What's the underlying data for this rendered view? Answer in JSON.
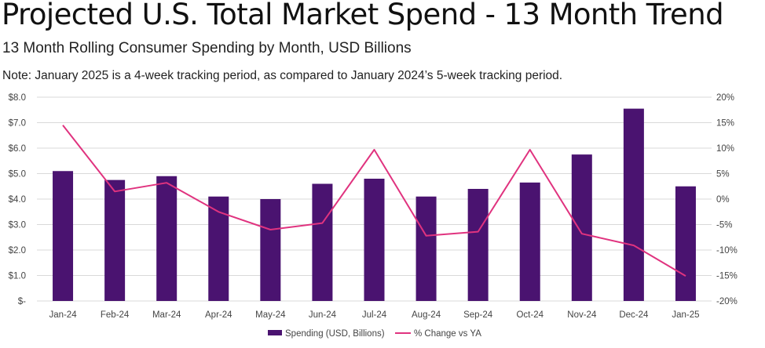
{
  "header": {
    "title": "Projected U.S. Total Market Spend - 13 Month Trend",
    "subtitle": "13 Month Rolling Consumer Spending by Month, USD Billions",
    "note": "Note: January 2025 is a 4-week tracking period, as compared to January 2024’s 5-week tracking period."
  },
  "chart_data": {
    "type": "bar",
    "title": "Projected U.S. Total Market Spend - 13 Month Trend",
    "subtitle": "13 Month Rolling Consumer Spending by Month, USD Billions",
    "categories": [
      "Jan-24",
      "Feb-24",
      "Mar-24",
      "Apr-24",
      "May-24",
      "Jun-24",
      "Jul-24",
      "Aug-24",
      "Sep-24",
      "Oct-24",
      "Nov-24",
      "Dec-24",
      "Jan-25"
    ],
    "series": [
      {
        "name": "Spending (USD, Billions)",
        "type": "bar",
        "axis": "left",
        "color": "#4a1370",
        "values": [
          5.1,
          4.75,
          4.9,
          4.1,
          4.0,
          4.6,
          4.8,
          4.1,
          4.4,
          4.65,
          5.75,
          7.55,
          4.5
        ]
      },
      {
        "name": "% Change vs YA",
        "type": "line",
        "axis": "right",
        "color": "#e0337f",
        "values": [
          14.5,
          1.5,
          3.2,
          -2.5,
          -6.0,
          -4.7,
          9.7,
          -7.2,
          -6.4,
          9.7,
          -6.8,
          -9.1,
          -15.1
        ]
      }
    ],
    "y_left": {
      "min": 0,
      "max": 8,
      "ticks": [
        0,
        1,
        2,
        3,
        4,
        5,
        6,
        7,
        8
      ],
      "tick_labels": [
        "$-",
        "$1.0",
        "$2.0",
        "$3.0",
        "$4.0",
        "$5.0",
        "$6.0",
        "$7.0",
        "$8.0"
      ]
    },
    "y_right": {
      "min": -20,
      "max": 20,
      "ticks": [
        -20,
        -15,
        -10,
        -5,
        0,
        5,
        10,
        15,
        20
      ],
      "tick_labels": [
        "-20%",
        "-15%",
        "-10%",
        "-5%",
        "0%",
        "5%",
        "10%",
        "15%",
        "20%"
      ]
    },
    "grid": true,
    "legend": "bottom"
  }
}
